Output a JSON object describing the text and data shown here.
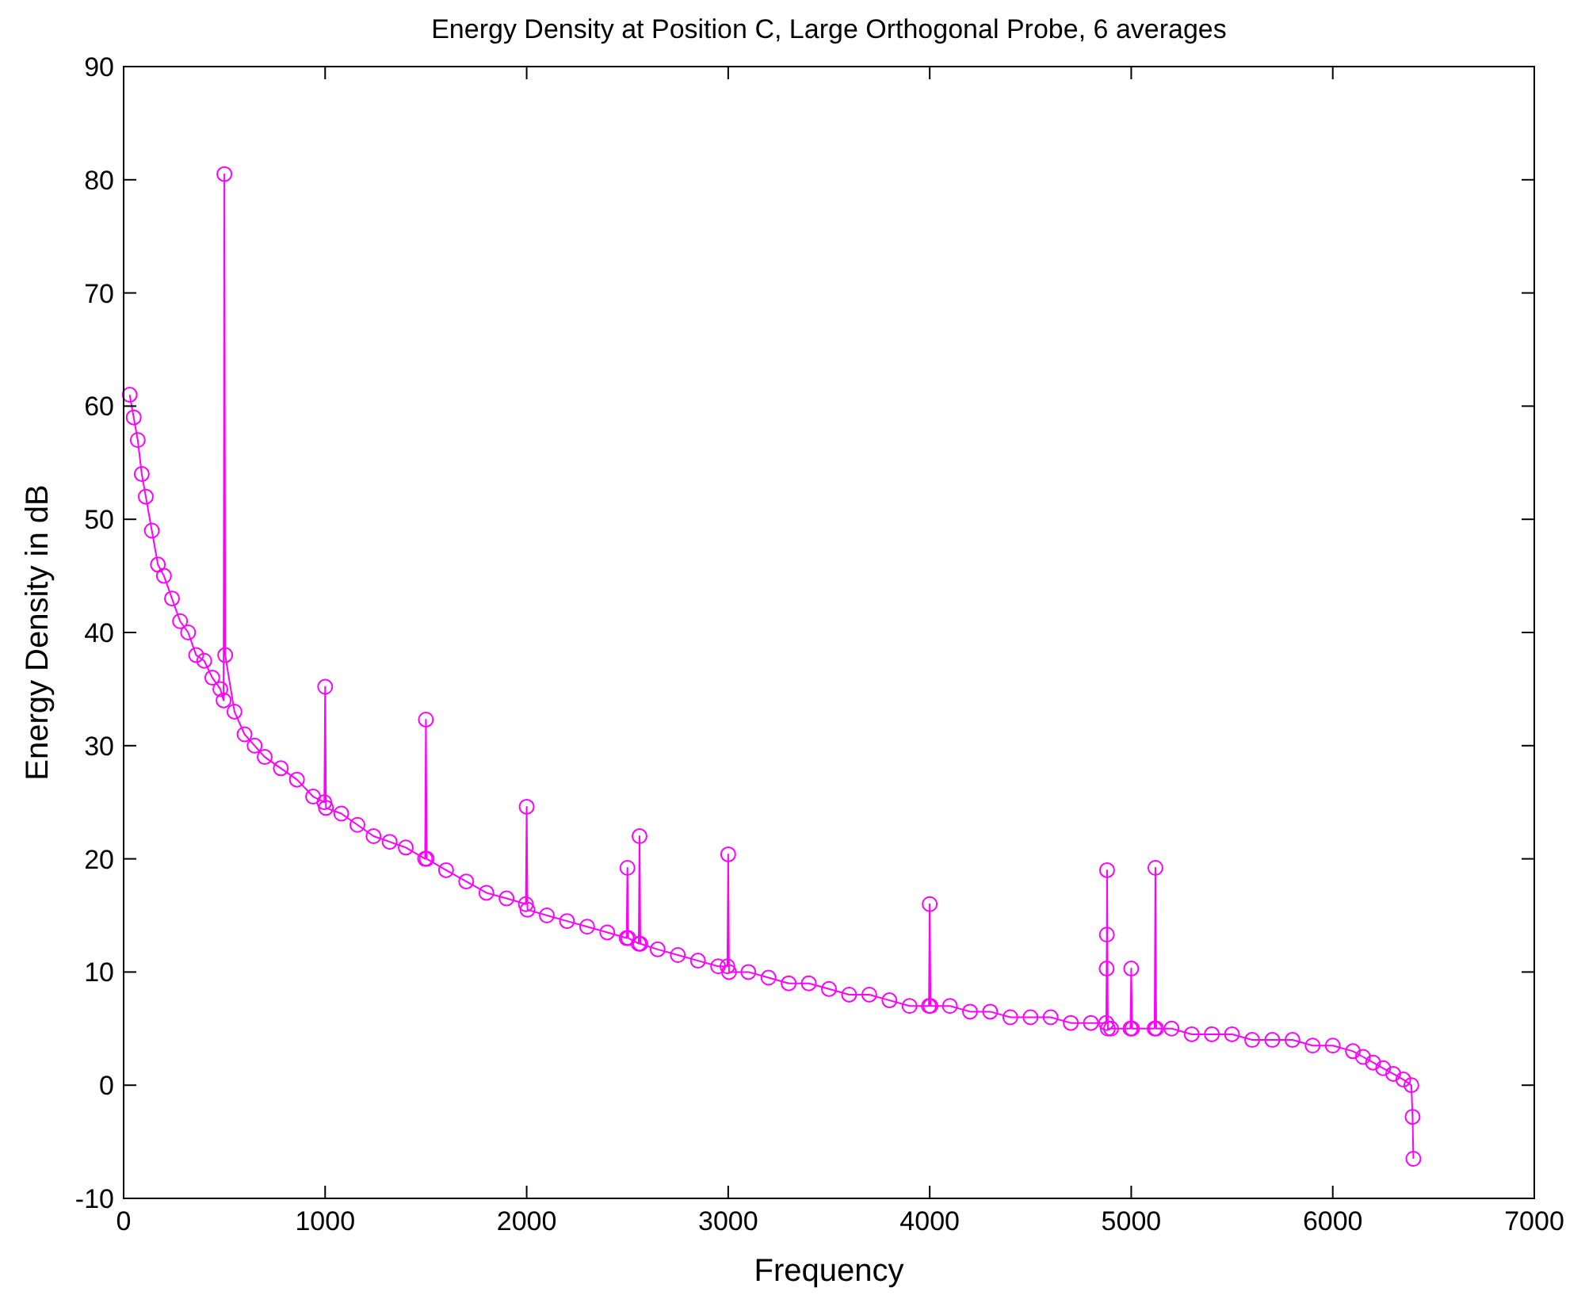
{
  "chart_data": {
    "type": "line",
    "title": "Energy Density at Position C,  Large Orthogonal Probe, 6 averages",
    "xlabel": "Frequency",
    "ylabel": "Energy Density in dB",
    "xlim": [
      0,
      7000
    ],
    "xticks": [
      0,
      1000,
      2000,
      3000,
      4000,
      5000,
      6000,
      7000
    ],
    "ylim": [
      -10,
      90
    ],
    "yticks": [
      -10,
      0,
      10,
      20,
      30,
      40,
      50,
      60,
      70,
      80,
      90
    ],
    "grid": false,
    "marker": "circle",
    "line_style": "solid",
    "series": [
      {
        "color": "#ff00ff",
        "x": [
          30,
          50,
          70,
          90,
          110,
          140,
          170,
          200,
          240,
          280,
          320,
          360,
          400,
          440,
          480,
          496,
          500,
          504,
          550,
          600,
          650,
          700,
          780,
          860,
          940,
          996,
          1000,
          1004,
          1080,
          1160,
          1240,
          1320,
          1400,
          1496,
          1500,
          1504,
          1600,
          1700,
          1800,
          1900,
          1996,
          2000,
          2004,
          2100,
          2200,
          2300,
          2400,
          2496,
          2500,
          2504,
          2556,
          2560,
          2564,
          2650,
          2750,
          2850,
          2950,
          2996,
          3000,
          3004,
          3100,
          3200,
          3300,
          3400,
          3500,
          3600,
          3700,
          3800,
          3900,
          3996,
          4000,
          4004,
          4100,
          4200,
          4300,
          4400,
          4500,
          4600,
          4700,
          4800,
          4876,
          4878,
          4879,
          4880,
          4884,
          4900,
          4996,
          5000,
          5004,
          5116,
          5120,
          5124,
          5200,
          5300,
          5400,
          5500,
          5600,
          5700,
          5800,
          5900,
          6000,
          6100,
          6150,
          6200,
          6250,
          6300,
          6350,
          6390,
          6396,
          6400
        ],
        "values": [
          61,
          59,
          57,
          54,
          52,
          49,
          46,
          45,
          43,
          41,
          40,
          38,
          37.5,
          36,
          35,
          34,
          80.5,
          38,
          33,
          31,
          30,
          29,
          28,
          27,
          25.5,
          25,
          35.2,
          24.5,
          24,
          23,
          22,
          21.5,
          21,
          20,
          32.3,
          20,
          19,
          18,
          17,
          16.5,
          16,
          24.6,
          15.5,
          15,
          14.5,
          14,
          13.5,
          13,
          19.2,
          13,
          12.5,
          22,
          12.5,
          12,
          11.5,
          11,
          10.5,
          10.5,
          20.4,
          10,
          10,
          9.5,
          9,
          9,
          8.5,
          8,
          8,
          7.5,
          7,
          7,
          16,
          7,
          7,
          6.5,
          6.5,
          6,
          6,
          6,
          5.5,
          5.5,
          5.5,
          10.3,
          13.3,
          19,
          5,
          5,
          5,
          10.3,
          5,
          5,
          19.2,
          5,
          5,
          4.5,
          4.5,
          4.5,
          4,
          4,
          4,
          3.5,
          3.5,
          3,
          2.5,
          2,
          1.5,
          1,
          0.5,
          0,
          -2.8,
          -6.5
        ]
      }
    ]
  }
}
